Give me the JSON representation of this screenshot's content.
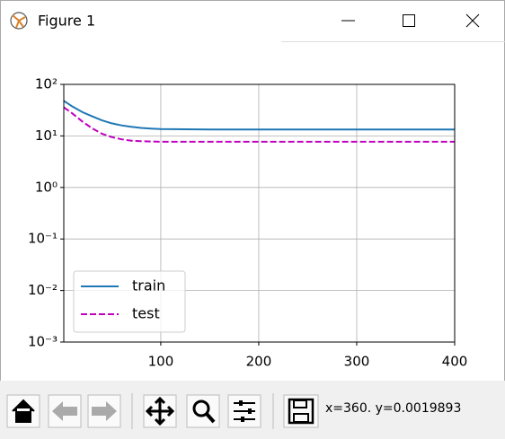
{
  "window": {
    "title": "Figure 1",
    "status": "x=360. y=0.0019893"
  },
  "chart_data": {
    "type": "line",
    "x": [
      1,
      10,
      20,
      30,
      40,
      50,
      60,
      70,
      80,
      90,
      100,
      150,
      200,
      250,
      300,
      350,
      400
    ],
    "series": [
      {
        "name": "train",
        "color": "#1f77b4",
        "style": "solid",
        "values": [
          48,
          37,
          29,
          24,
          20,
          17.5,
          16,
          15,
          14.3,
          13.9,
          13.6,
          13.3,
          13.3,
          13.3,
          13.3,
          13.3,
          13.3
        ]
      },
      {
        "name": "test",
        "color": "#bf00bf",
        "style": "dashed",
        "values": [
          36,
          27,
          19,
          14,
          11,
          9.5,
          8.6,
          8.1,
          7.9,
          7.8,
          7.7,
          7.7,
          7.7,
          7.7,
          7.7,
          7.7,
          7.7
        ]
      }
    ],
    "xlim": [
      1,
      400
    ],
    "xticks": [
      100,
      200,
      300,
      400
    ],
    "ylim": [
      0.001,
      100
    ],
    "yscale": "log",
    "yticks": [
      {
        "value": 0.001,
        "label": "10⁻³"
      },
      {
        "value": 0.01,
        "label": "10⁻²"
      },
      {
        "value": 0.1,
        "label": "10⁻¹"
      },
      {
        "value": 1,
        "label": "10⁰"
      },
      {
        "value": 10,
        "label": "10¹"
      },
      {
        "value": 100,
        "label": "10²"
      }
    ],
    "grid": true,
    "legend": "lower left"
  }
}
